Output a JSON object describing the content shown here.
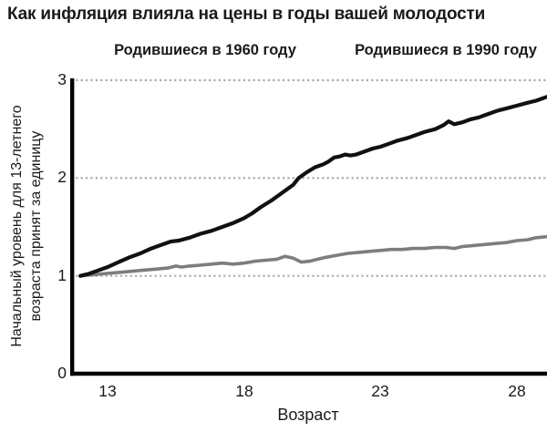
{
  "chart_data": {
    "type": "line",
    "title": "Как инфляция влияла на цены в годы вашей молодости",
    "xlabel": "Возраст",
    "ylabel": "Начальный уровень для 13-летнего возраста принят за единицу",
    "ylabel_lines": [
      "Начальный уровень для 13-летнего",
      "возраста принят за единицу"
    ],
    "xlim": [
      11.7,
      29.1
    ],
    "ylim": [
      0,
      3
    ],
    "xticks": [
      "13",
      "18",
      "23",
      "28"
    ],
    "yticks": [
      "0",
      "1",
      "2",
      "3"
    ],
    "grid": "dotted horizontal gridlines at y = 1, 2, 3",
    "legend_position": "top",
    "colors": {
      "axis": "#000000",
      "gridline": "#a9a9a9",
      "text": "#1a1a1a",
      "series_born_1960": "#111111",
      "series_born_1990": "#7d7d7d"
    },
    "series": [
      {
        "name": "born-1960",
        "label": "Родившиеся в 1960 году",
        "color": "#111111",
        "points": [
          [
            12.0,
            1.0
          ],
          [
            12.3,
            1.02
          ],
          [
            12.6,
            1.05
          ],
          [
            13.0,
            1.09
          ],
          [
            13.4,
            1.14
          ],
          [
            13.8,
            1.19
          ],
          [
            14.2,
            1.23
          ],
          [
            14.6,
            1.28
          ],
          [
            15.0,
            1.32
          ],
          [
            15.3,
            1.35
          ],
          [
            15.6,
            1.36
          ],
          [
            16.0,
            1.39
          ],
          [
            16.4,
            1.43
          ],
          [
            16.8,
            1.46
          ],
          [
            17.2,
            1.5
          ],
          [
            17.6,
            1.54
          ],
          [
            18.0,
            1.59
          ],
          [
            18.3,
            1.64
          ],
          [
            18.6,
            1.7
          ],
          [
            19.0,
            1.77
          ],
          [
            19.3,
            1.83
          ],
          [
            19.6,
            1.89
          ],
          [
            19.8,
            1.93
          ],
          [
            20.0,
            2.0
          ],
          [
            20.3,
            2.06
          ],
          [
            20.6,
            2.11
          ],
          [
            20.9,
            2.14
          ],
          [
            21.1,
            2.17
          ],
          [
            21.3,
            2.21
          ],
          [
            21.5,
            2.22
          ],
          [
            21.7,
            2.24
          ],
          [
            21.9,
            2.23
          ],
          [
            22.1,
            2.24
          ],
          [
            22.4,
            2.27
          ],
          [
            22.7,
            2.3
          ],
          [
            23.0,
            2.32
          ],
          [
            23.3,
            2.35
          ],
          [
            23.6,
            2.38
          ],
          [
            24.0,
            2.41
          ],
          [
            24.3,
            2.44
          ],
          [
            24.6,
            2.47
          ],
          [
            25.0,
            2.5
          ],
          [
            25.3,
            2.54
          ],
          [
            25.5,
            2.58
          ],
          [
            25.7,
            2.55
          ],
          [
            26.0,
            2.57
          ],
          [
            26.3,
            2.6
          ],
          [
            26.6,
            2.62
          ],
          [
            27.0,
            2.66
          ],
          [
            27.3,
            2.69
          ],
          [
            27.6,
            2.71
          ],
          [
            28.0,
            2.74
          ],
          [
            28.4,
            2.77
          ],
          [
            28.7,
            2.79
          ],
          [
            29.1,
            2.83
          ]
        ]
      },
      {
        "name": "born-1990",
        "label": "Родившиеся в 1990 году",
        "color": "#7d7d7d",
        "points": [
          [
            12.0,
            1.0
          ],
          [
            12.4,
            1.01
          ],
          [
            12.8,
            1.02
          ],
          [
            13.2,
            1.03
          ],
          [
            13.6,
            1.04
          ],
          [
            14.0,
            1.05
          ],
          [
            14.4,
            1.06
          ],
          [
            14.8,
            1.07
          ],
          [
            15.2,
            1.08
          ],
          [
            15.5,
            1.1
          ],
          [
            15.7,
            1.09
          ],
          [
            16.0,
            1.1
          ],
          [
            16.4,
            1.11
          ],
          [
            16.8,
            1.12
          ],
          [
            17.2,
            1.13
          ],
          [
            17.6,
            1.12
          ],
          [
            18.0,
            1.13
          ],
          [
            18.4,
            1.15
          ],
          [
            18.8,
            1.16
          ],
          [
            19.2,
            1.17
          ],
          [
            19.5,
            1.2
          ],
          [
            19.8,
            1.18
          ],
          [
            20.1,
            1.14
          ],
          [
            20.4,
            1.15
          ],
          [
            20.7,
            1.17
          ],
          [
            21.0,
            1.19
          ],
          [
            21.4,
            1.21
          ],
          [
            21.8,
            1.23
          ],
          [
            22.2,
            1.24
          ],
          [
            22.6,
            1.25
          ],
          [
            23.0,
            1.26
          ],
          [
            23.4,
            1.27
          ],
          [
            23.8,
            1.27
          ],
          [
            24.2,
            1.28
          ],
          [
            24.6,
            1.28
          ],
          [
            25.0,
            1.29
          ],
          [
            25.4,
            1.29
          ],
          [
            25.7,
            1.28
          ],
          [
            26.0,
            1.3
          ],
          [
            26.4,
            1.31
          ],
          [
            26.8,
            1.32
          ],
          [
            27.2,
            1.33
          ],
          [
            27.6,
            1.34
          ],
          [
            28.0,
            1.36
          ],
          [
            28.4,
            1.37
          ],
          [
            28.7,
            1.39
          ],
          [
            29.1,
            1.4
          ]
        ]
      }
    ]
  }
}
